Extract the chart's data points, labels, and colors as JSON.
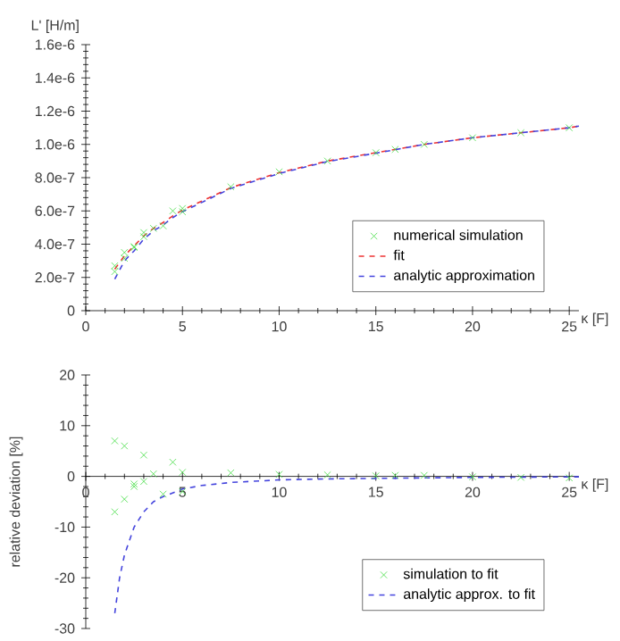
{
  "chart_data": [
    {
      "type": "scatter",
      "xlabel": "κ [F]",
      "ylabel": "L' [H/m]",
      "xlim": [
        0,
        25.5
      ],
      "ylim": [
        0,
        1.6e-06
      ],
      "xticks": [
        0,
        5,
        10,
        15,
        20,
        25
      ],
      "yticks": [
        {
          "value": 0,
          "label": "0"
        },
        {
          "value": 2e-07,
          "label": "2.0e-7"
        },
        {
          "value": 4e-07,
          "label": "4.0e-7"
        },
        {
          "value": 6e-07,
          "label": "6.0e-7"
        },
        {
          "value": 8e-07,
          "label": "8.0e-7"
        },
        {
          "value": 1e-06,
          "label": "1.0e-6"
        },
        {
          "value": 1.2e-06,
          "label": "1.2e-6"
        },
        {
          "value": 1.4e-06,
          "label": "1.4e-6"
        },
        {
          "value": 1.6e-06,
          "label": "1.6e-6"
        }
      ],
      "legend": "bottom right",
      "series": [
        {
          "name": "numerical simulation",
          "marker": "cross",
          "color": "#44dd44",
          "x": [
            1.5,
            1.5,
            2,
            2,
            2.5,
            2.5,
            3,
            3,
            3.5,
            4,
            4.5,
            5,
            5,
            7.5,
            10,
            12.5,
            15,
            16,
            17.5,
            20,
            22.5,
            25
          ],
          "values": [
            2.7e-07,
            2.35e-07,
            3.5e-07,
            3.15e-07,
            3.85e-07,
            3.8e-07,
            4.7e-07,
            4.45e-07,
            4.95e-07,
            5.1e-07,
            6e-07,
            6.15e-07,
            5.95e-07,
            7.45e-07,
            8.35e-07,
            9e-07,
            9.5e-07,
            9.7e-07,
            1e-06,
            1.04e-06,
            1.07e-06,
            1.1e-06
          ]
        },
        {
          "name": "fit",
          "type": "line",
          "line_style": "dashed",
          "color": "#ee3333",
          "x": [
            1.5,
            2,
            2.5,
            3,
            3.5,
            4,
            4.5,
            5,
            7.5,
            10,
            12.5,
            15,
            17.5,
            20,
            22.5,
            25,
            25.5
          ],
          "values": [
            2.5e-07,
            3.3e-07,
            3.9e-07,
            4.5e-07,
            4.95e-07,
            5.3e-07,
            5.7e-07,
            6.05e-07,
            7.4e-07,
            8.3e-07,
            9e-07,
            9.5e-07,
            1e-06,
            1.04e-06,
            1.07e-06,
            1.1e-06,
            1.11e-06
          ]
        },
        {
          "name": "analytic approximation",
          "type": "line",
          "line_style": "dashed",
          "color": "#4444dd",
          "x": [
            1.5,
            2,
            2.5,
            3,
            3.5,
            4,
            4.5,
            5,
            7.5,
            10,
            12.5,
            15,
            17.5,
            20,
            22.5,
            25,
            25.5
          ],
          "values": [
            1.9e-07,
            3e-07,
            3.6e-07,
            4.3e-07,
            4.8e-07,
            5.15e-07,
            5.6e-07,
            5.95e-07,
            7.35e-07,
            8.25e-07,
            8.97e-07,
            9.47e-07,
            1e-06,
            1.04e-06,
            1.07e-06,
            1.1e-06,
            1.11e-06
          ]
        }
      ]
    },
    {
      "type": "scatter",
      "xlabel": "κ [F]",
      "ylabel": "relative deviation [%]",
      "xlim": [
        0,
        25.5
      ],
      "ylim": [
        -30,
        20
      ],
      "xticks": [
        0,
        5,
        10,
        15,
        20,
        25
      ],
      "yticks": [
        -30,
        -20,
        -10,
        0,
        10,
        20
      ],
      "legend": "bottom right",
      "series": [
        {
          "name": "simulation to fit",
          "marker": "cross",
          "color": "#44dd44",
          "x": [
            1.5,
            1.5,
            2,
            2,
            2.5,
            2.5,
            3,
            3,
            3.5,
            4,
            4.5,
            5,
            5,
            7.5,
            10,
            12.5,
            15,
            16,
            17.5,
            20,
            22.5,
            25
          ],
          "values": [
            7,
            -7,
            6,
            -4.5,
            -1.5,
            -2,
            4.2,
            -1,
            0.5,
            -3.5,
            2.8,
            0.8,
            -3,
            0.7,
            0.4,
            0.3,
            0.1,
            0.2,
            0.2,
            -0.1,
            -0.2,
            -0.3
          ]
        },
        {
          "name": "analytic approx. to fit",
          "type": "line",
          "line_style": "dashed",
          "color": "#4444dd",
          "x": [
            1.5,
            1.75,
            2,
            2.5,
            3,
            3.5,
            4,
            5,
            6,
            7.5,
            10,
            12.5,
            15,
            20,
            25,
            25.5
          ],
          "values": [
            -27,
            -20,
            -15.5,
            -10,
            -7,
            -5,
            -4,
            -2.5,
            -1.8,
            -1.2,
            -0.7,
            -0.5,
            -0.4,
            -0.2,
            -0.1,
            -0.1
          ]
        }
      ]
    }
  ]
}
